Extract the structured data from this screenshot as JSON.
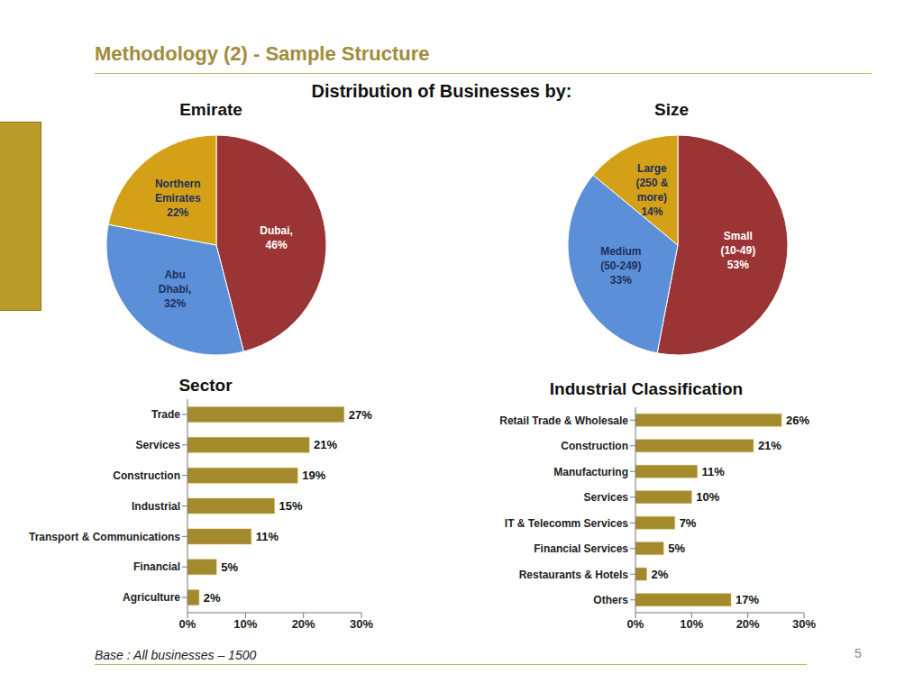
{
  "slide": {
    "title": "Methodology (2) - Sample Structure",
    "heading": "Distribution of Businesses by:",
    "footer": "Base : All businesses – 1500",
    "page_number": "5"
  },
  "chart_data": [
    {
      "type": "pie",
      "title": "Emirate",
      "categories": [
        "Dubai,",
        "Abu Dhabi,",
        "Northern Emirates"
      ],
      "values": [
        46,
        32,
        22
      ],
      "value_labels": [
        "46%",
        "32%",
        "22%"
      ],
      "colors": [
        "#9B3535",
        "#5B8FD8",
        "#D4A017"
      ],
      "data_labels": true
    },
    {
      "type": "pie",
      "title": "Size",
      "categories": [
        "Small (10-49)",
        "Medium (50-249)",
        "Large (250 & more)"
      ],
      "values": [
        53,
        33,
        14
      ],
      "value_labels": [
        "53%",
        "33%",
        "14%"
      ],
      "colors": [
        "#9B3535",
        "#5B8FD8",
        "#D4A017"
      ],
      "data_labels": true
    },
    {
      "type": "bar",
      "orientation": "horizontal",
      "title": "Sector",
      "categories": [
        "Trade",
        "Services",
        "Construction",
        "Industrial",
        "Transport & Communications",
        "Financial",
        "Agriculture"
      ],
      "values": [
        27,
        21,
        19,
        15,
        11,
        5,
        2
      ],
      "value_labels": [
        "27%",
        "21%",
        "19%",
        "15%",
        "11%",
        "5%",
        "2%"
      ],
      "color": "#A38A2C",
      "xlim": [
        0,
        30
      ],
      "xticks": [
        {
          "value": 0,
          "label": "0%"
        },
        {
          "value": 10,
          "label": "10%"
        },
        {
          "value": 20,
          "label": "20%"
        },
        {
          "value": 30,
          "label": "30%"
        }
      ],
      "grid": false,
      "data_labels": true
    },
    {
      "type": "bar",
      "orientation": "horizontal",
      "title": "Industrial Classification",
      "categories": [
        "Retail Trade & Wholesale",
        "Construction",
        "Manufacturing",
        "Services",
        "IT & Telecomm Services",
        "Financial Services",
        "Restaurants & Hotels",
        "Others"
      ],
      "values": [
        26,
        21,
        11,
        10,
        7,
        5,
        2,
        17
      ],
      "value_labels": [
        "26%",
        "21%",
        "11%",
        "10%",
        "7%",
        "5%",
        "2%",
        "17%"
      ],
      "color": "#A38A2C",
      "xlim": [
        0,
        30
      ],
      "xticks": [
        {
          "value": 0,
          "label": "0%"
        },
        {
          "value": 10,
          "label": "10%"
        },
        {
          "value": 20,
          "label": "20%"
        },
        {
          "value": 30,
          "label": "30%"
        }
      ],
      "grid": false,
      "data_labels": true
    }
  ]
}
